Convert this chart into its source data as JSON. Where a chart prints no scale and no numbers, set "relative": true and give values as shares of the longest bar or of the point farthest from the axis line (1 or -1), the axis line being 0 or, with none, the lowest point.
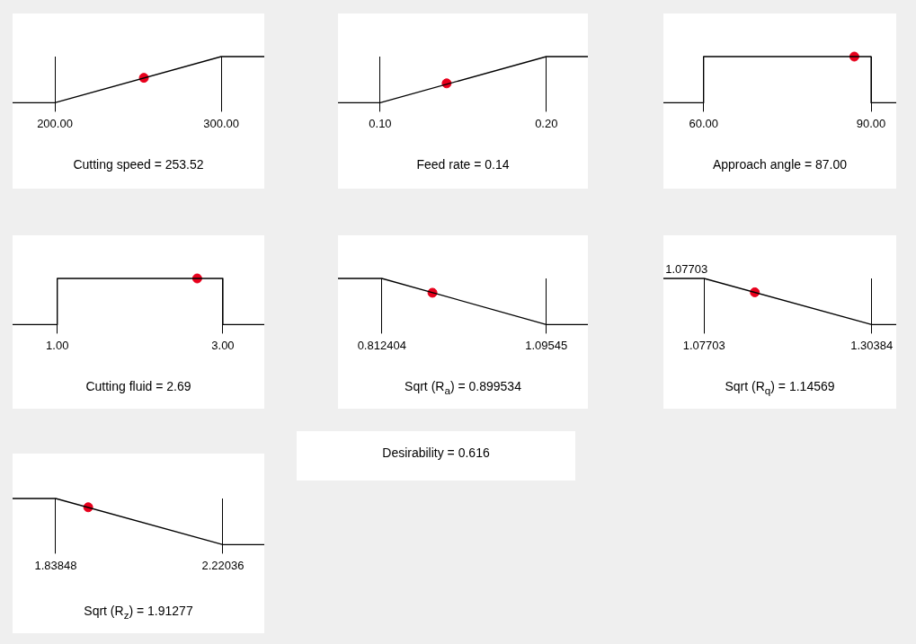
{
  "chart_data": [
    {
      "type": "line",
      "relative": true,
      "xlabel": "Cutting speed = 253.52",
      "xlim": [
        174.6,
        325.9
      ],
      "xticks": [
        {
          "value": 200,
          "label": "200.00"
        },
        {
          "value": 300,
          "label": "300.00"
        }
      ],
      "grid": "x",
      "series": [
        {
          "x": [
            174.6,
            200,
            300,
            325.9
          ],
          "values": [
            0,
            0,
            1,
            1
          ],
          "color": "#000000"
        },
        {
          "type": "scatter",
          "x": [
            253.52
          ],
          "values": [
            0.54
          ],
          "color": "#e8001c",
          "marker": "circle"
        }
      ]
    },
    {
      "type": "line",
      "relative": true,
      "xlabel": "Feed rate = 0.14",
      "xlim": [
        0.0746,
        0.225
      ],
      "xticks": [
        {
          "value": 0.1,
          "label": "0.10"
        },
        {
          "value": 0.2,
          "label": "0.20"
        }
      ],
      "grid": "x",
      "series": [
        {
          "x": [
            0.0746,
            0.1,
            0.2,
            0.225
          ],
          "values": [
            0,
            0,
            1,
            1
          ],
          "color": "#000000"
        },
        {
          "type": "scatter",
          "x": [
            0.14
          ],
          "values": [
            0.42
          ],
          "color": "#e8001c",
          "marker": "circle"
        }
      ]
    },
    {
      "type": "line",
      "relative": true,
      "xlabel": "Approach angle = 87.00",
      "xlim": [
        52.8,
        94.5
      ],
      "xticks": [
        {
          "value": 60,
          "label": "60.00"
        },
        {
          "value": 90,
          "label": "90.00"
        }
      ],
      "grid": "x",
      "series": [
        {
          "x": [
            52.8,
            60,
            60,
            90,
            90,
            94.5
          ],
          "values": [
            0,
            0,
            1,
            1,
            0,
            0
          ],
          "color": "#000000"
        },
        {
          "type": "scatter",
          "x": [
            87
          ],
          "values": [
            1
          ],
          "color": "#e8001c",
          "marker": "circle"
        }
      ]
    },
    {
      "type": "line",
      "relative": true,
      "xlabel": "Cutting fluid = 2.69",
      "xlim": [
        0.46,
        3.5
      ],
      "xticks": [
        {
          "value": 1,
          "label": "1.00"
        },
        {
          "value": 3,
          "label": "3.00"
        }
      ],
      "grid": "x",
      "series": [
        {
          "x": [
            0.46,
            1,
            1,
            3,
            3,
            3.5
          ],
          "values": [
            0,
            0,
            1,
            1,
            0,
            0
          ],
          "color": "#000000"
        },
        {
          "type": "scatter",
          "x": [
            2.69
          ],
          "values": [
            1
          ],
          "color": "#e8001c",
          "marker": "circle"
        }
      ]
    },
    {
      "type": "line",
      "relative": true,
      "xlabel": "Sqrt (R$_{a}$) = 0.899534",
      "xlim": [
        0.737,
        1.167
      ],
      "xticks": [
        0.812404,
        1.09545
      ],
      "grid": "x",
      "series": [
        {
          "x": [
            0.737,
            0.812404,
            1.09545,
            1.167
          ],
          "values": [
            1,
            1,
            0,
            0
          ],
          "color": "#000000"
        },
        {
          "type": "scatter",
          "x": [
            0.899534
          ],
          "values": [
            0.69
          ],
          "color": "#e8001c",
          "marker": "circle"
        }
      ]
    },
    {
      "type": "line",
      "relative": true,
      "xlabel": "Sqrt (R$_{q}$) = 1.14569",
      "xlim": [
        1.022,
        1.337
      ],
      "xticks": [
        1.07703,
        1.30384
      ],
      "grid": "x",
      "annotations": [
        {
          "text": "1.07703",
          "x": 1.07703,
          "y": 1
        }
      ],
      "series": [
        {
          "x": [
            1.022,
            1.07703,
            1.30384,
            1.337
          ],
          "values": [
            1,
            1,
            0,
            0
          ],
          "color": "#000000"
        },
        {
          "type": "scatter",
          "x": [
            1.14569
          ],
          "values": [
            0.7
          ],
          "color": "#e8001c",
          "marker": "circle"
        }
      ]
    },
    {
      "type": "line",
      "relative": true,
      "xlabel": "Sqrt (R$_{z}$) = 1.91277",
      "xlim": [
        1.74,
        2.315
      ],
      "xticks": [
        1.83848,
        2.22036
      ],
      "grid": "x",
      "series": [
        {
          "x": [
            1.74,
            1.83848,
            2.22036,
            2.315
          ],
          "values": [
            1,
            1,
            0,
            0
          ],
          "color": "#000000"
        },
        {
          "type": "scatter",
          "x": [
            1.91277
          ],
          "values": [
            0.81
          ],
          "color": "#e8001c",
          "marker": "circle"
        }
      ]
    },
    {
      "type": "other",
      "title": "Desirability = 0.616"
    }
  ]
}
